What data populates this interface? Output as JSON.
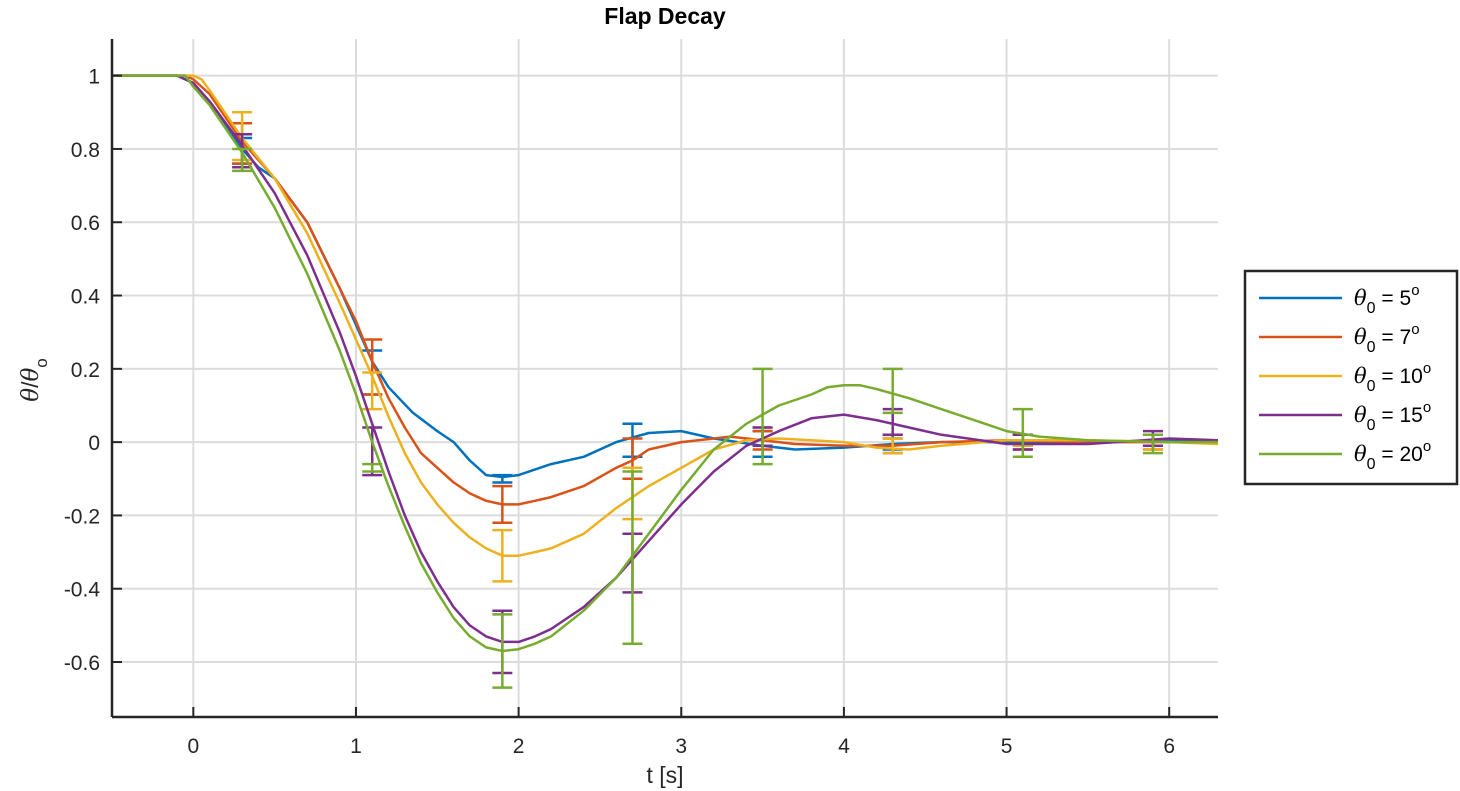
{
  "chart_data": {
    "type": "line",
    "title": "Flap Decay",
    "xlabel": "t [s]",
    "ylabel_symbol": "θ",
    "ylabel_sub": "o",
    "xlim": [
      -0.5,
      6.3
    ],
    "ylim": [
      -0.75,
      1.1
    ],
    "xticks": [
      0,
      1,
      2,
      3,
      4,
      5,
      6
    ],
    "xtick_labels": [
      "0",
      "1",
      "2",
      "3",
      "4",
      "5",
      "6"
    ],
    "yticks": [
      -0.6,
      -0.4,
      -0.2,
      0,
      0.2,
      0.4,
      0.6,
      0.8,
      1
    ],
    "ytick_labels": [
      "-0.6",
      "-0.4",
      "-0.2",
      "0",
      "0.2",
      "0.4",
      "0.6",
      "0.8",
      "1"
    ],
    "grid": true,
    "legend_position": "right",
    "series": [
      {
        "name_symbol": "θ",
        "name_sub": "0",
        "name_value": " = 5",
        "name_sup": "o",
        "color": "#0072BD",
        "points": [
          [
            -0.5,
            1.0
          ],
          [
            -0.1,
            1.0
          ],
          [
            0.0,
            0.98
          ],
          [
            0.15,
            0.9
          ],
          [
            0.3,
            0.8
          ],
          [
            0.4,
            0.75
          ],
          [
            0.5,
            0.72
          ],
          [
            0.7,
            0.6
          ],
          [
            0.9,
            0.42
          ],
          [
            1.0,
            0.32
          ],
          [
            1.1,
            0.22
          ],
          [
            1.2,
            0.15
          ],
          [
            1.35,
            0.08
          ],
          [
            1.5,
            0.03
          ],
          [
            1.6,
            0.0
          ],
          [
            1.7,
            -0.05
          ],
          [
            1.8,
            -0.09
          ],
          [
            1.9,
            -0.095
          ],
          [
            2.0,
            -0.09
          ],
          [
            2.2,
            -0.06
          ],
          [
            2.4,
            -0.04
          ],
          [
            2.6,
            0.0
          ],
          [
            2.8,
            0.025
          ],
          [
            3.0,
            0.03
          ],
          [
            3.2,
            0.01
          ],
          [
            3.5,
            -0.01
          ],
          [
            3.7,
            -0.02
          ],
          [
            4.0,
            -0.015
          ],
          [
            4.3,
            -0.005
          ],
          [
            4.6,
            0.0
          ],
          [
            5.0,
            0.0
          ],
          [
            5.5,
            0.0
          ],
          [
            6.0,
            0.005
          ],
          [
            6.3,
            0.005
          ]
        ],
        "errorbars": [
          [
            0.3,
            0.78,
            0.83,
            0.76
          ],
          [
            1.1,
            0.16,
            0.25,
            0.13
          ],
          [
            1.9,
            -0.1,
            -0.09,
            -0.11
          ],
          [
            2.7,
            0.0,
            0.05,
            -0.04
          ],
          [
            3.5,
            0.0,
            0.03,
            -0.04
          ],
          [
            4.3,
            0.0,
            0.02,
            -0.02
          ],
          [
            5.1,
            0.0,
            0.02,
            -0.01
          ],
          [
            5.9,
            0.0,
            0.02,
            -0.01
          ]
        ]
      },
      {
        "name_symbol": "θ",
        "name_sub": "0",
        "name_value": " = 7",
        "name_sup": "o",
        "color": "#D95319",
        "points": [
          [
            -0.5,
            1.0
          ],
          [
            -0.05,
            1.0
          ],
          [
            0.0,
            0.99
          ],
          [
            0.1,
            0.95
          ],
          [
            0.3,
            0.82
          ],
          [
            0.5,
            0.72
          ],
          [
            0.7,
            0.6
          ],
          [
            0.9,
            0.42
          ],
          [
            1.0,
            0.33
          ],
          [
            1.1,
            0.22
          ],
          [
            1.2,
            0.12
          ],
          [
            1.3,
            0.04
          ],
          [
            1.4,
            -0.03
          ],
          [
            1.5,
            -0.07
          ],
          [
            1.6,
            -0.11
          ],
          [
            1.7,
            -0.14
          ],
          [
            1.8,
            -0.16
          ],
          [
            1.9,
            -0.17
          ],
          [
            2.0,
            -0.17
          ],
          [
            2.1,
            -0.16
          ],
          [
            2.2,
            -0.15
          ],
          [
            2.4,
            -0.12
          ],
          [
            2.6,
            -0.07
          ],
          [
            2.7,
            -0.05
          ],
          [
            2.8,
            -0.02
          ],
          [
            3.0,
            0.0
          ],
          [
            3.2,
            0.01
          ],
          [
            3.3,
            0.015
          ],
          [
            3.5,
            0.005
          ],
          [
            3.7,
            -0.005
          ],
          [
            4.0,
            -0.01
          ],
          [
            4.3,
            -0.01
          ],
          [
            4.6,
            0.0
          ],
          [
            5.0,
            0.005
          ],
          [
            5.5,
            0.0
          ],
          [
            6.0,
            0.0
          ],
          [
            6.3,
            0.0
          ]
        ],
        "errorbars": [
          [
            0.3,
            0.8,
            0.87,
            0.76
          ],
          [
            1.1,
            0.2,
            0.28,
            0.13
          ],
          [
            1.9,
            -0.17,
            -0.12,
            -0.22
          ],
          [
            2.7,
            -0.05,
            0.01,
            -0.1
          ],
          [
            3.5,
            0.005,
            0.03,
            -0.02
          ],
          [
            4.3,
            -0.005,
            0.01,
            -0.03
          ],
          [
            5.1,
            0.0,
            0.02,
            -0.02
          ],
          [
            5.9,
            0.0,
            0.02,
            -0.02
          ]
        ]
      },
      {
        "name_symbol": "θ",
        "name_sub": "0",
        "name_value": " = 10",
        "name_sup": "o",
        "color": "#EDB120",
        "points": [
          [
            -0.5,
            1.0
          ],
          [
            -0.05,
            1.0
          ],
          [
            0.0,
            1.0
          ],
          [
            0.05,
            0.99
          ],
          [
            0.1,
            0.96
          ],
          [
            0.3,
            0.83
          ],
          [
            0.5,
            0.72
          ],
          [
            0.7,
            0.57
          ],
          [
            0.9,
            0.38
          ],
          [
            1.0,
            0.28
          ],
          [
            1.1,
            0.18
          ],
          [
            1.2,
            0.07
          ],
          [
            1.3,
            -0.03
          ],
          [
            1.4,
            -0.11
          ],
          [
            1.5,
            -0.17
          ],
          [
            1.6,
            -0.22
          ],
          [
            1.7,
            -0.26
          ],
          [
            1.8,
            -0.29
          ],
          [
            1.9,
            -0.31
          ],
          [
            2.0,
            -0.31
          ],
          [
            2.1,
            -0.3
          ],
          [
            2.2,
            -0.29
          ],
          [
            2.4,
            -0.25
          ],
          [
            2.6,
            -0.18
          ],
          [
            2.8,
            -0.12
          ],
          [
            3.0,
            -0.07
          ],
          [
            3.2,
            -0.02
          ],
          [
            3.4,
            0.005
          ],
          [
            3.6,
            0.01
          ],
          [
            3.8,
            0.005
          ],
          [
            4.0,
            0.0
          ],
          [
            4.2,
            -0.015
          ],
          [
            4.4,
            -0.02
          ],
          [
            4.6,
            -0.01
          ],
          [
            5.0,
            0.005
          ],
          [
            5.5,
            0.005
          ],
          [
            6.0,
            0.0
          ],
          [
            6.3,
            -0.005
          ]
        ],
        "errorbars": [
          [
            0.3,
            0.84,
            0.9,
            0.77
          ],
          [
            1.1,
            0.13,
            0.19,
            0.09
          ],
          [
            1.9,
            -0.31,
            -0.24,
            -0.38
          ],
          [
            2.7,
            -0.15,
            -0.07,
            -0.21
          ],
          [
            3.5,
            0.015,
            0.04,
            -0.01
          ],
          [
            4.3,
            -0.01,
            0.01,
            -0.03
          ],
          [
            5.1,
            0.005,
            0.02,
            -0.01
          ],
          [
            5.9,
            0.0,
            0.02,
            -0.02
          ]
        ]
      },
      {
        "name_symbol": "θ",
        "name_sub": "0",
        "name_value": " = 15",
        "name_sup": "o",
        "color": "#7E2F8E",
        "points": [
          [
            -0.5,
            1.0
          ],
          [
            -0.1,
            1.0
          ],
          [
            0.0,
            0.98
          ],
          [
            0.1,
            0.93
          ],
          [
            0.3,
            0.81
          ],
          [
            0.5,
            0.68
          ],
          [
            0.7,
            0.51
          ],
          [
            0.9,
            0.3
          ],
          [
            1.0,
            0.18
          ],
          [
            1.1,
            0.05
          ],
          [
            1.2,
            -0.08
          ],
          [
            1.3,
            -0.2
          ],
          [
            1.4,
            -0.3
          ],
          [
            1.5,
            -0.38
          ],
          [
            1.6,
            -0.45
          ],
          [
            1.7,
            -0.5
          ],
          [
            1.8,
            -0.53
          ],
          [
            1.9,
            -0.545
          ],
          [
            2.0,
            -0.545
          ],
          [
            2.1,
            -0.53
          ],
          [
            2.2,
            -0.51
          ],
          [
            2.4,
            -0.45
          ],
          [
            2.6,
            -0.37
          ],
          [
            2.8,
            -0.27
          ],
          [
            3.0,
            -0.17
          ],
          [
            3.2,
            -0.08
          ],
          [
            3.4,
            -0.01
          ],
          [
            3.6,
            0.03
          ],
          [
            3.8,
            0.065
          ],
          [
            4.0,
            0.075
          ],
          [
            4.2,
            0.06
          ],
          [
            4.4,
            0.04
          ],
          [
            4.6,
            0.02
          ],
          [
            5.0,
            -0.005
          ],
          [
            5.5,
            -0.005
          ],
          [
            6.0,
            0.01
          ],
          [
            6.3,
            0.005
          ]
        ],
        "errorbars": [
          [
            0.3,
            0.8,
            0.84,
            0.75
          ],
          [
            1.1,
            -0.03,
            0.04,
            -0.09
          ],
          [
            1.9,
            -0.54,
            -0.46,
            -0.63
          ],
          [
            2.7,
            -0.33,
            -0.25,
            -0.41
          ],
          [
            3.5,
            0.015,
            0.04,
            -0.01
          ],
          [
            4.3,
            0.06,
            0.09,
            0.02
          ],
          [
            5.1,
            0.0,
            0.02,
            -0.02
          ],
          [
            5.9,
            0.01,
            0.03,
            -0.01
          ]
        ]
      },
      {
        "name_symbol": "θ",
        "name_sub": "0",
        "name_value": " = 20",
        "name_sup": "o",
        "color": "#77AC30",
        "points": [
          [
            -0.5,
            1.0
          ],
          [
            -0.05,
            1.0
          ],
          [
            0.0,
            0.97
          ],
          [
            0.1,
            0.92
          ],
          [
            0.3,
            0.79
          ],
          [
            0.5,
            0.64
          ],
          [
            0.7,
            0.46
          ],
          [
            0.9,
            0.25
          ],
          [
            1.0,
            0.13
          ],
          [
            1.1,
            0.0
          ],
          [
            1.2,
            -0.12
          ],
          [
            1.3,
            -0.23
          ],
          [
            1.4,
            -0.33
          ],
          [
            1.5,
            -0.41
          ],
          [
            1.6,
            -0.48
          ],
          [
            1.7,
            -0.53
          ],
          [
            1.8,
            -0.56
          ],
          [
            1.9,
            -0.57
          ],
          [
            2.0,
            -0.565
          ],
          [
            2.1,
            -0.55
          ],
          [
            2.2,
            -0.53
          ],
          [
            2.4,
            -0.46
          ],
          [
            2.6,
            -0.37
          ],
          [
            2.8,
            -0.25
          ],
          [
            3.0,
            -0.13
          ],
          [
            3.2,
            -0.02
          ],
          [
            3.4,
            0.05
          ],
          [
            3.6,
            0.1
          ],
          [
            3.8,
            0.13
          ],
          [
            3.9,
            0.15
          ],
          [
            4.0,
            0.155
          ],
          [
            4.1,
            0.155
          ],
          [
            4.2,
            0.145
          ],
          [
            4.4,
            0.12
          ],
          [
            4.6,
            0.09
          ],
          [
            4.8,
            0.06
          ],
          [
            5.0,
            0.03
          ],
          [
            5.2,
            0.015
          ],
          [
            5.5,
            0.005
          ],
          [
            6.0,
            0.0
          ],
          [
            6.3,
            0.0
          ]
        ],
        "errorbars": [
          [
            0.3,
            0.76,
            0.8,
            0.74
          ],
          [
            1.1,
            -0.07,
            -0.06,
            -0.08
          ],
          [
            1.9,
            -0.57,
            -0.47,
            -0.67
          ],
          [
            2.7,
            -0.18,
            -0.08,
            -0.55
          ],
          [
            3.5,
            0.06,
            0.2,
            -0.06
          ],
          [
            4.3,
            0.13,
            0.2,
            0.08
          ],
          [
            5.1,
            0.02,
            0.09,
            -0.04
          ],
          [
            5.9,
            -0.005,
            0.02,
            -0.03
          ]
        ]
      }
    ]
  }
}
